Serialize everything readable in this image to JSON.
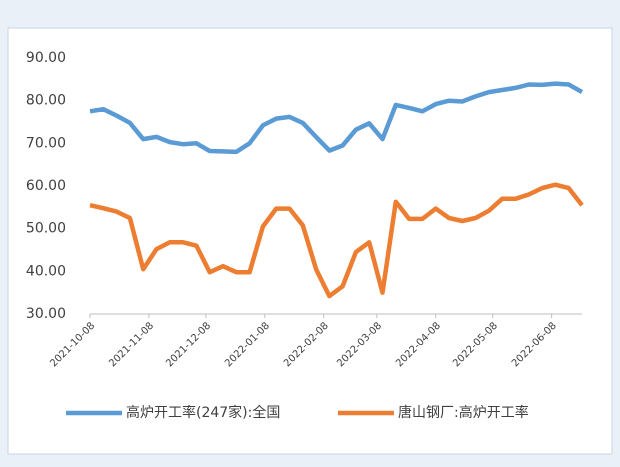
{
  "chart_data": {
    "type": "line",
    "x": [
      "2021-10-08",
      "2021-10-15",
      "2021-10-22",
      "2021-10-29",
      "2021-11-05",
      "2021-11-12",
      "2021-11-19",
      "2021-11-26",
      "2021-12-03",
      "2021-12-10",
      "2021-12-17",
      "2021-12-24",
      "2021-12-31",
      "2022-01-07",
      "2022-01-14",
      "2022-01-21",
      "2022-01-28",
      "2022-02-04",
      "2022-02-11",
      "2022-02-18",
      "2022-02-25",
      "2022-03-04",
      "2022-03-11",
      "2022-03-18",
      "2022-03-25",
      "2022-04-01",
      "2022-04-08",
      "2022-04-15",
      "2022-04-22",
      "2022-04-29",
      "2022-05-06",
      "2022-05-13",
      "2022-05-20",
      "2022-05-27",
      "2022-06-03",
      "2022-06-10",
      "2022-06-17",
      "2022-06-24"
    ],
    "series": [
      {
        "name": "高炉开工率(247家):全国",
        "color": "#5b9bd5",
        "values": [
          77.5,
          78,
          76.5,
          74.8,
          71,
          71.5,
          70.3,
          69.8,
          70,
          68.2,
          68.1,
          68,
          70,
          74.2,
          75.8,
          76.2,
          74.8,
          71.5,
          68.3,
          69.5,
          73.2,
          74.7,
          71,
          79,
          78.3,
          77.5,
          79.2,
          80,
          79.8,
          81,
          82,
          82.5,
          83,
          83.8,
          83.7,
          84,
          83.8,
          82
        ]
      },
      {
        "name": "唐山钢厂:高炉开工率",
        "color": "#ed7d31",
        "values": [
          55.5,
          54.8,
          54,
          52.5,
          40.5,
          45.2,
          46.8,
          46.8,
          46,
          39.8,
          41.2,
          39.8,
          39.8,
          50.5,
          54.7,
          54.7,
          50.8,
          40.5,
          34.2,
          36.5,
          44.5,
          46.8,
          35,
          56.3,
          52.3,
          52.3,
          54.7,
          52.5,
          51.8,
          52.5,
          54.2,
          57,
          57,
          58,
          59.5,
          60.3,
          59.5,
          55.5
        ]
      }
    ],
    "xlim": [
      "2021-10-08",
      "2022-06-24"
    ],
    "xticks": [
      "2021-10-08",
      "2021-11-08",
      "2021-12-08",
      "2022-01-08",
      "2022-02-08",
      "2022-03-08",
      "2022-04-08",
      "2022-05-08",
      "2022-06-08"
    ],
    "ylim": [
      30,
      90
    ],
    "yticks": [
      {
        "value": 30,
        "label": "30.00"
      },
      {
        "value": 40,
        "label": "40.00"
      },
      {
        "value": 50,
        "label": "50.00"
      },
      {
        "value": 60,
        "label": "60.00"
      },
      {
        "value": 70,
        "label": "70.00"
      },
      {
        "value": 80,
        "label": "80.00"
      },
      {
        "value": 90,
        "label": "90.00"
      }
    ],
    "legend": "bottom"
  }
}
